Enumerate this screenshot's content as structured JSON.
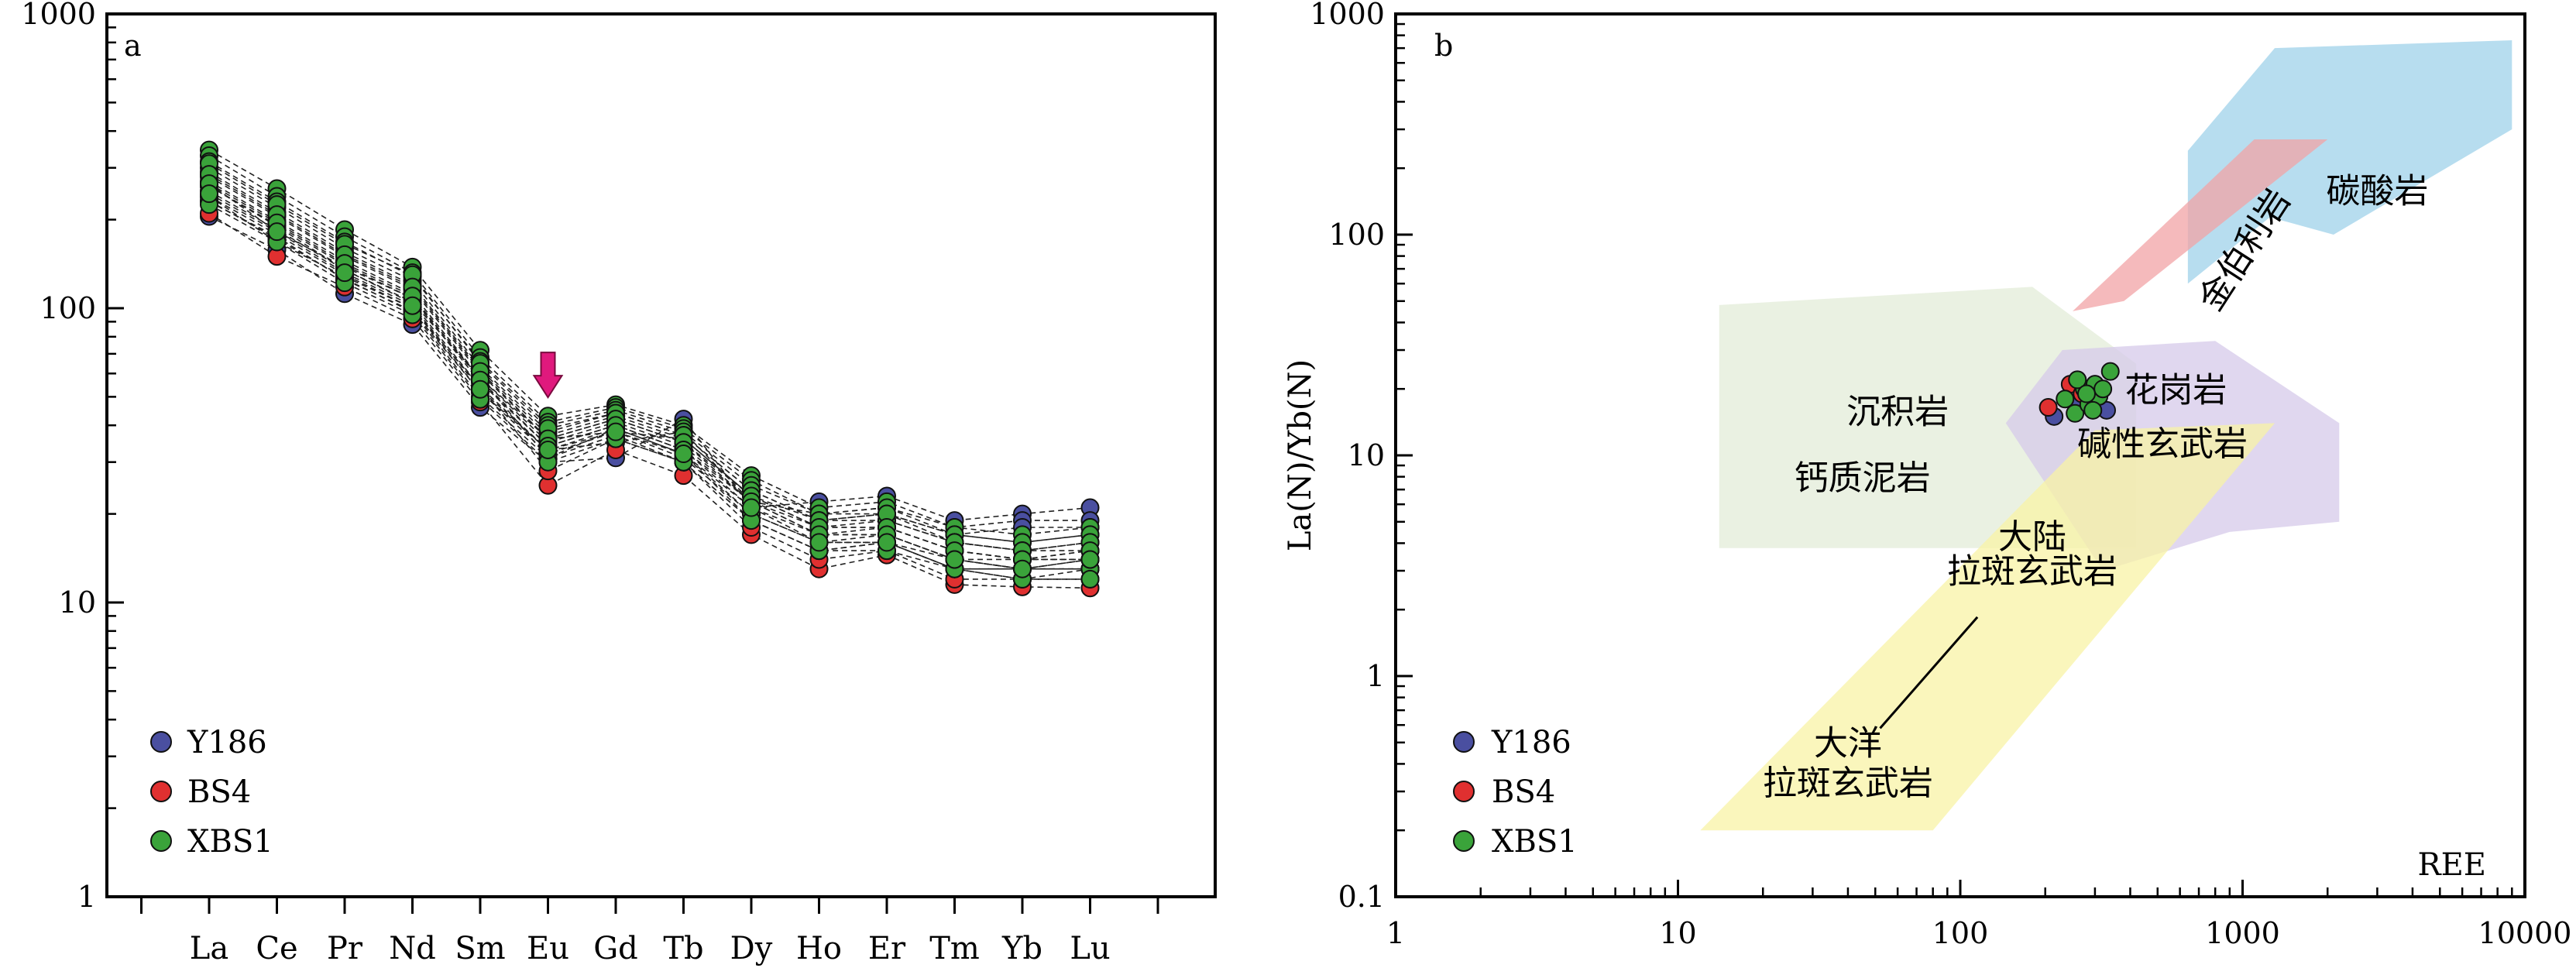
{
  "chart_data": [
    {
      "panel": "a",
      "type": "line",
      "scale": "log-y",
      "ylim": [
        1,
        1000
      ],
      "yticks": [
        "1",
        "10",
        "100",
        "1000"
      ],
      "categories": [
        "La",
        "Ce",
        "Pr",
        "Nd",
        "Sm",
        "Eu",
        "Gd",
        "Tb",
        "Dy",
        "Ho",
        "Er",
        "Tm",
        "Yb",
        "Lu"
      ],
      "legend": {
        "placement": "bottom-left",
        "entries": [
          "Y186",
          "BS4",
          "XBS1"
        ]
      },
      "colors": {
        "Y186": "#4a4fa0",
        "BS4": "#e03030",
        "XBS1": "#3aa33a",
        "arrow": "#e0197d",
        "lines": "#222222"
      },
      "annotation": "arrow-above-Eu",
      "series": [
        {
          "name": "Y186",
          "values": [
            205,
            158,
            112,
            88,
            46,
            30,
            31,
            42,
            21,
            22,
            23,
            19,
            20,
            21
          ]
        },
        {
          "name": "Y186",
          "values": [
            230,
            175,
            125,
            98,
            52,
            33,
            35,
            38,
            22,
            20,
            21,
            18,
            19,
            19
          ]
        },
        {
          "name": "Y186",
          "values": [
            260,
            190,
            135,
            105,
            58,
            36,
            38,
            36,
            23,
            19,
            20,
            17,
            18,
            18
          ]
        },
        {
          "name": "BS4",
          "values": [
            210,
            150,
            118,
            92,
            48,
            25,
            33,
            27,
            17,
            13,
            14.5,
            11.5,
            11.3,
            11.2
          ]
        },
        {
          "name": "BS4",
          "values": [
            240,
            168,
            128,
            100,
            54,
            28,
            36,
            30,
            18,
            14,
            15,
            12,
            12,
            12
          ]
        },
        {
          "name": "BS4",
          "values": [
            265,
            182,
            138,
            108,
            58,
            31,
            39,
            32,
            19,
            15,
            16,
            13,
            13,
            13
          ]
        },
        {
          "name": "XBS1",
          "values": [
            345,
            255,
            185,
            138,
            72,
            43,
            47,
            40,
            27,
            21,
            22,
            18,
            17,
            18
          ]
        },
        {
          "name": "XBS1",
          "values": [
            330,
            240,
            175,
            132,
            68,
            41,
            46,
            39,
            26,
            20,
            21,
            17,
            16,
            17
          ]
        },
        {
          "name": "XBS1",
          "values": [
            315,
            230,
            168,
            128,
            66,
            40,
            45,
            38,
            25,
            20,
            20,
            17,
            16,
            17
          ]
        },
        {
          "name": "XBS1",
          "values": [
            300,
            220,
            160,
            124,
            63,
            38,
            44,
            37,
            24,
            19,
            19,
            16,
            15,
            16
          ]
        },
        {
          "name": "XBS1",
          "values": [
            290,
            212,
            155,
            120,
            62,
            37,
            43,
            36,
            23,
            18,
            19,
            16,
            15,
            15
          ]
        },
        {
          "name": "XBS1",
          "values": [
            280,
            205,
            150,
            116,
            60,
            36,
            42,
            35,
            22,
            18,
            18,
            15,
            14,
            15
          ]
        },
        {
          "name": "XBS1",
          "values": [
            270,
            198,
            145,
            112,
            58,
            35,
            41,
            34,
            22,
            17,
            18,
            15,
            14,
            14
          ]
        },
        {
          "name": "XBS1",
          "values": [
            260,
            192,
            140,
            108,
            56,
            34,
            40,
            33,
            21,
            17,
            17,
            14,
            13,
            14
          ]
        },
        {
          "name": "XBS1",
          "values": [
            250,
            185,
            135,
            104,
            54,
            33,
            39,
            32,
            20,
            16,
            17,
            14,
            13,
            13
          ]
        },
        {
          "name": "XBS1",
          "values": [
            240,
            178,
            130,
            100,
            52,
            32,
            38,
            31,
            20,
            16,
            16,
            13,
            13,
            13
          ]
        },
        {
          "name": "XBS1",
          "values": [
            232,
            172,
            126,
            97,
            50,
            31,
            37,
            30,
            19,
            15,
            16,
            13,
            12,
            13
          ]
        },
        {
          "name": "XBS1",
          "values": [
            225,
            168,
            122,
            95,
            49,
            30,
            36,
            30,
            19,
            15,
            15,
            13,
            12,
            12
          ]
        },
        {
          "name": "XBS1",
          "values": [
            310,
            225,
            165,
            130,
            65,
            39,
            44,
            37,
            24,
            19,
            20,
            16,
            15,
            16
          ]
        },
        {
          "name": "XBS1",
          "values": [
            285,
            208,
            152,
            118,
            61,
            36,
            42,
            35,
            23,
            18,
            18,
            15,
            14,
            15
          ]
        },
        {
          "name": "XBS1",
          "values": [
            265,
            195,
            142,
            110,
            57,
            34,
            40,
            33,
            22,
            17,
            17,
            14,
            14,
            14
          ]
        },
        {
          "name": "XBS1",
          "values": [
            245,
            182,
            132,
            102,
            53,
            33,
            38,
            32,
            21,
            16,
            16,
            14,
            13,
            14
          ]
        }
      ]
    },
    {
      "panel": "b",
      "type": "scatter",
      "scale": "log-log",
      "xlabel": "REE",
      "ylabel": "La(N)/Yb(N)",
      "xlim": [
        1,
        10000
      ],
      "ylim": [
        0.1,
        1000
      ],
      "xticks": [
        "1",
        "10",
        "100",
        "1000",
        "10000"
      ],
      "yticks": [
        "0.1",
        "1",
        "10",
        "100",
        "1000"
      ],
      "legend": {
        "placement": "bottom-left",
        "entries": [
          "Y186",
          "BS4",
          "XBS1"
        ]
      },
      "colors": {
        "Y186": "#4a4fa0",
        "BS4": "#e03030",
        "XBS1": "#3aa33a"
      },
      "fields": [
        {
          "label": "碳酸岩",
          "color": "#9fd2ea",
          "polygon": [
            [
              640,
              240
            ],
            [
              1300,
              700
            ],
            [
              9000,
              760
            ],
            [
              9000,
              300
            ],
            [
              2100,
              100
            ],
            [
              1250,
              120
            ],
            [
              640,
              60
            ]
          ]
        },
        {
          "label": "金伯利岩",
          "color": "#f2a3a6",
          "polygon": [
            [
              250,
              45
            ],
            [
              380,
              50
            ],
            [
              2000,
              270
            ],
            [
              1100,
              270
            ]
          ]
        },
        {
          "label": "沉积岩",
          "color": "#e3ecd8",
          "polygon": [
            [
              14,
              3.8
            ],
            [
              420,
              3.8
            ],
            [
              420,
              26
            ],
            [
              180,
              58
            ],
            [
              14,
              48
            ]
          ]
        },
        {
          "label": "钙质泥岩",
          "color": "#e3ecd8",
          "polygon": []
        },
        {
          "label": "花岗岩",
          "color": "#d6c9ea",
          "polygon": [
            [
              145,
              14
            ],
            [
              230,
              30
            ],
            [
              800,
              33
            ],
            [
              2200,
              14
            ],
            [
              2200,
              5
            ],
            [
              900,
              4.5
            ],
            [
              320,
              3
            ]
          ]
        },
        {
          "label": "碱性玄武岩",
          "color": "#ead9c0",
          "polygon": []
        },
        {
          "label": "大陆\n拉斑玄武岩",
          "color": "#f8f3a5",
          "polygon": [
            [
              12,
              0.2
            ],
            [
              80,
              0.2
            ],
            [
              1300,
              14
            ],
            [
              300,
              13
            ]
          ]
        },
        {
          "label": "大洋\n拉斑玄武岩",
          "color": "#f8f3a5",
          "polygon": []
        }
      ],
      "series": [
        {
          "name": "Y186",
          "points": [
            [
              215,
              15
            ],
            [
              265,
              17
            ],
            [
              305,
              19
            ],
            [
              330,
              16
            ],
            [
              290,
              18
            ]
          ]
        },
        {
          "name": "BS4",
          "points": [
            [
              205,
              16.5
            ],
            [
              245,
              21
            ],
            [
              270,
              19
            ]
          ]
        },
        {
          "name": "XBS1",
          "points": [
            [
              235,
              18
            ],
            [
              255,
              15.5
            ],
            [
              275,
              20
            ],
            [
              285,
              17
            ],
            [
              300,
              21
            ],
            [
              310,
              18.5
            ],
            [
              320,
              20
            ],
            [
              340,
              24
            ],
            [
              260,
              22
            ],
            [
              295,
              16
            ],
            [
              280,
              19
            ]
          ]
        }
      ]
    }
  ],
  "panel_a_label": "a",
  "panel_b_label": "b"
}
